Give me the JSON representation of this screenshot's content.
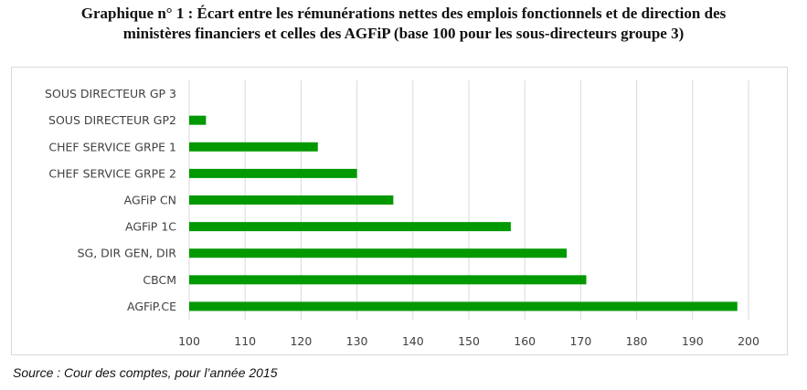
{
  "title_line1": "Graphique n° 1 : Écart entre les rémunérations nettes des emplois fonctionnels et de direction des",
  "title_line2": "ministères financiers et celles des AGFiP (base 100 pour les sous-directeurs groupe 3)",
  "source": "Source : Cour des comptes, pour l’année 2015",
  "colors": {
    "bar": "#009900",
    "grid": "#d9d9d9",
    "text": "#404040"
  },
  "chart_data": {
    "type": "bar",
    "orientation": "horizontal",
    "categories": [
      "SOUS DIRECTEUR GP 3",
      "SOUS DIRECTEUR GP2",
      "CHEF SERVICE GRPE  1",
      "CHEF SERVICE GRPE  2",
      "AGFiP CN",
      "AGFiP 1C",
      "SG, DIR GEN, DIR",
      "CBCM",
      "AGFiP.CE"
    ],
    "values": [
      100,
      103,
      123,
      130,
      136.5,
      157.5,
      167.5,
      171,
      198
    ],
    "xlim": [
      100,
      200
    ],
    "xticks": [
      100,
      110,
      120,
      130,
      140,
      150,
      160,
      170,
      180,
      190,
      200
    ],
    "grid": "vertical",
    "legend": "none"
  }
}
